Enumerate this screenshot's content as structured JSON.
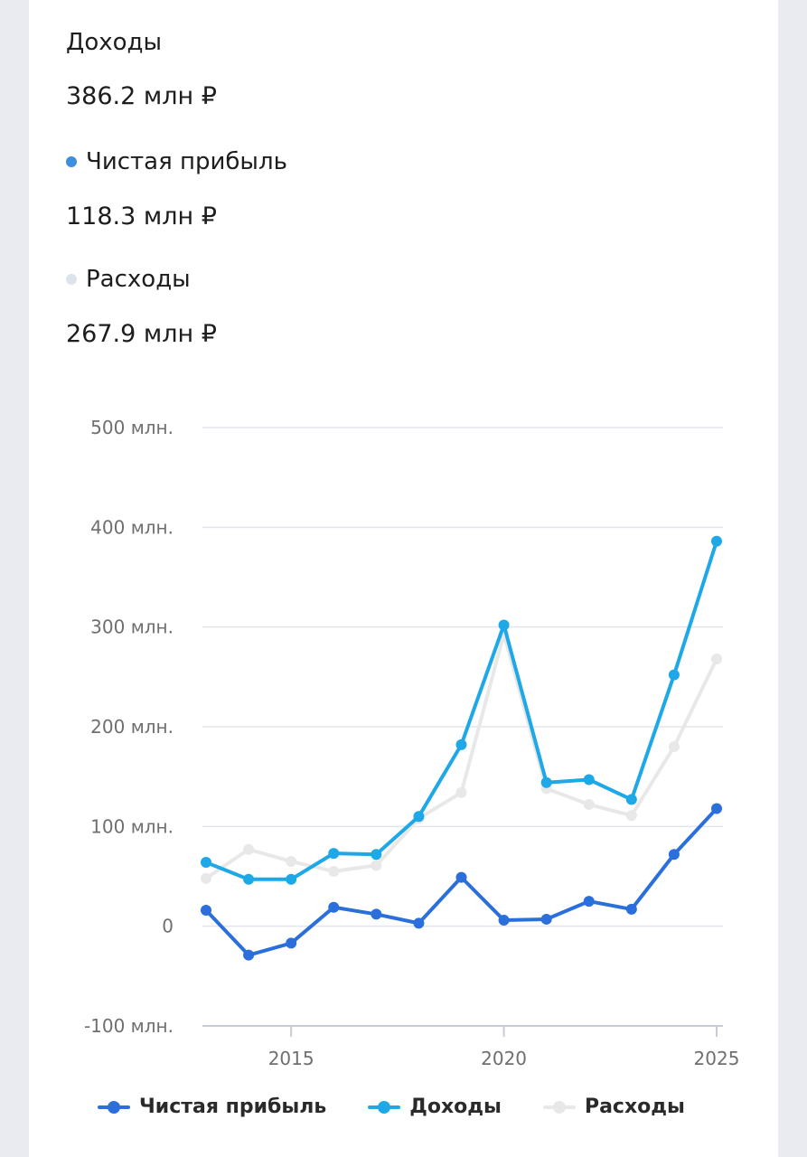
{
  "summary": {
    "income": {
      "label": "Доходы",
      "value": "386.2 млн ₽"
    },
    "net_profit": {
      "label": "Чистая прибыль",
      "value": "118.3 млн ₽",
      "dot_color": "#3d8fe0"
    },
    "expenses": {
      "label": "Расходы",
      "value": "267.9 млн ₽",
      "dot_color": "#dde3ea"
    }
  },
  "chart_data": {
    "type": "line",
    "x": [
      2013,
      2014,
      2015,
      2016,
      2017,
      2018,
      2019,
      2020,
      2021,
      2022,
      2023,
      2024,
      2025
    ],
    "yticks": [
      {
        "value": 500,
        "label": "500 млн."
      },
      {
        "value": 400,
        "label": "400 млн."
      },
      {
        "value": 300,
        "label": "300 млн."
      },
      {
        "value": 200,
        "label": "200 млн."
      },
      {
        "value": 100,
        "label": "100 млн."
      },
      {
        "value": 0,
        "label": "0"
      },
      {
        "value": -100,
        "label": "-100 млн."
      }
    ],
    "xticks": [
      {
        "value": 2015,
        "label": "2015"
      },
      {
        "value": 2020,
        "label": "2020"
      },
      {
        "value": 2025,
        "label": "2025"
      }
    ],
    "ylim": [
      -100,
      500
    ],
    "xlim": [
      2013,
      2025
    ],
    "grid": true,
    "legend_position": "bottom",
    "series": [
      {
        "name": "Расходы",
        "color": "#e8e8e8",
        "values": [
          48,
          77,
          65,
          55,
          61,
          108,
          134,
          293,
          138,
          122,
          111,
          180,
          268
        ]
      },
      {
        "name": "Доходы",
        "color": "#1ea8e8",
        "values": [
          64,
          47,
          47,
          73,
          72,
          110,
          182,
          302,
          144,
          147,
          127,
          252,
          386
        ]
      },
      {
        "name": "Чистая прибыль",
        "color": "#2a6fdb",
        "values": [
          16,
          -29,
          -17,
          19,
          12,
          3,
          49,
          6,
          7,
          25,
          17,
          72,
          118
        ]
      }
    ]
  },
  "legend": {
    "items": [
      {
        "label": "Чистая прибыль",
        "color": "#2a6fdb"
      },
      {
        "label": "Доходы",
        "color": "#1ea8e8"
      },
      {
        "label": "Расходы",
        "color": "#e8e8e8"
      }
    ]
  }
}
